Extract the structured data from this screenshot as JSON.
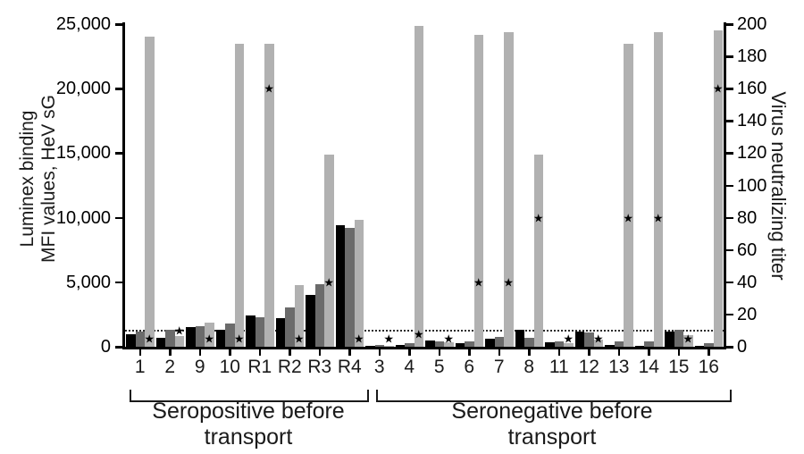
{
  "labels": {
    "left_axis_line1": "Luminex binding",
    "left_axis_line2": "MFI values, HeV sG",
    "right_axis": "Virus neutralizing titer",
    "group1_line1": "Seropositive before",
    "group1_line2": "transport",
    "group2_line1": "Seronegative before",
    "group2_line2": "transport"
  },
  "chart_data": {
    "type": "bar",
    "title": "",
    "categories": [
      "1",
      "2",
      "9",
      "10",
      "R1",
      "R2",
      "R3",
      "R4",
      "3",
      "4",
      "5",
      "6",
      "7",
      "8",
      "11",
      "12",
      "13",
      "14",
      "15",
      "16"
    ],
    "y_left": {
      "label": "Luminex binding MFI values, HeV sG",
      "range": [
        0,
        25000
      ],
      "ticks": [
        0,
        5000,
        10000,
        15000,
        20000,
        25000
      ],
      "tick_labels": [
        "0",
        "5,000",
        "10,000",
        "15,000",
        "20,000",
        "25,000"
      ]
    },
    "y_right": {
      "label": "Virus neutralizing titer",
      "range": [
        0,
        200
      ],
      "ticks": [
        0,
        20,
        40,
        60,
        80,
        100,
        120,
        140,
        160,
        180,
        200
      ],
      "tick_labels": [
        "0",
        "20",
        "40",
        "60",
        "80",
        "100",
        "120",
        "140",
        "160",
        "180",
        "200"
      ]
    },
    "series": [
      {
        "name": "black bar",
        "color": "#000000",
        "values": [
          1000,
          700,
          1500,
          1300,
          2450,
          2250,
          4000,
          9450,
          50,
          150,
          500,
          300,
          600,
          1300,
          350,
          1200,
          150,
          100,
          1150,
          100
        ]
      },
      {
        "name": "dark gray bar",
        "color": "#6b6b6b",
        "values": [
          1150,
          1350,
          1600,
          1800,
          2300,
          3050,
          4850,
          9200,
          150,
          300,
          450,
          450,
          750,
          700,
          400,
          1100,
          450,
          450,
          1300,
          300
        ]
      },
      {
        "name": "light gray bar",
        "color": "#b1b1b1",
        "values": [
          24000,
          800,
          1850,
          23450,
          23450,
          4800,
          14900,
          9850,
          100,
          24850,
          350,
          24200,
          24350,
          14900,
          300,
          550,
          23500,
          24350,
          900,
          24500
        ]
      }
    ],
    "star_markers": {
      "symbol": "★",
      "axis": "right",
      "values": [
        5,
        10,
        5,
        5,
        160,
        5,
        40,
        5,
        5,
        8,
        5,
        40,
        40,
        80,
        5,
        5,
        80,
        80,
        5,
        160
      ]
    },
    "cutoff_line": {
      "style": "dotted",
      "mfi": 1300
    },
    "group_brackets": [
      {
        "label": "Seropositive before transport",
        "from": "1",
        "to": "R4"
      },
      {
        "label": "Seronegative before transport",
        "from": "3",
        "to": "16"
      }
    ],
    "grid": false,
    "legend": "none"
  }
}
